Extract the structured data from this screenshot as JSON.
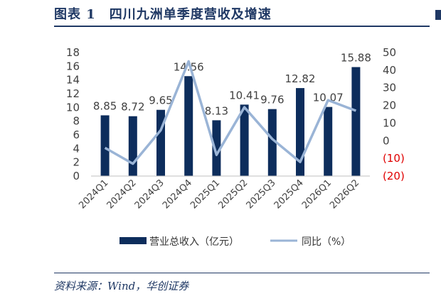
{
  "header": {
    "title": "图表 1　四川九洲单季度营收及增速"
  },
  "footer": {
    "source": "资料来源：Wind，华创证券"
  },
  "chart_data": {
    "type": "bar",
    "categories": [
      "2024Q1",
      "2024Q2",
      "2024Q3",
      "2024Q4",
      "2025Q1",
      "2025Q2",
      "2025Q3",
      "2025Q4",
      "2026Q1",
      "2026Q2"
    ],
    "series": [
      {
        "name": "营业总收入（亿元）",
        "type": "bar",
        "axis": "left",
        "color": "#0d2d5c",
        "values": [
          8.85,
          8.72,
          9.65,
          14.56,
          8.13,
          10.41,
          9.76,
          12.82,
          10.07,
          15.88
        ],
        "labels": [
          "8.85",
          "8.72",
          "9.65",
          "14.56",
          "8.13",
          "10.41",
          "9.76",
          "12.82",
          "10.07",
          "15.88"
        ]
      },
      {
        "name": "同比（%）",
        "type": "line",
        "axis": "right",
        "color": "#9ab4d6",
        "values": [
          -4,
          -13,
          6,
          45,
          -8,
          19,
          1,
          -12,
          23,
          17
        ]
      }
    ],
    "ylim": [
      0,
      18
    ],
    "y_ticks": [
      "18",
      "16",
      "14",
      "12",
      "10",
      "8",
      "6",
      "4",
      "2",
      "0"
    ],
    "y2lim": [
      -20,
      50
    ],
    "y2_ticks": [
      "50",
      "40",
      "30",
      "20",
      "10",
      "0",
      "(10)",
      "(20)"
    ],
    "legend": "bottom",
    "grid": false
  }
}
